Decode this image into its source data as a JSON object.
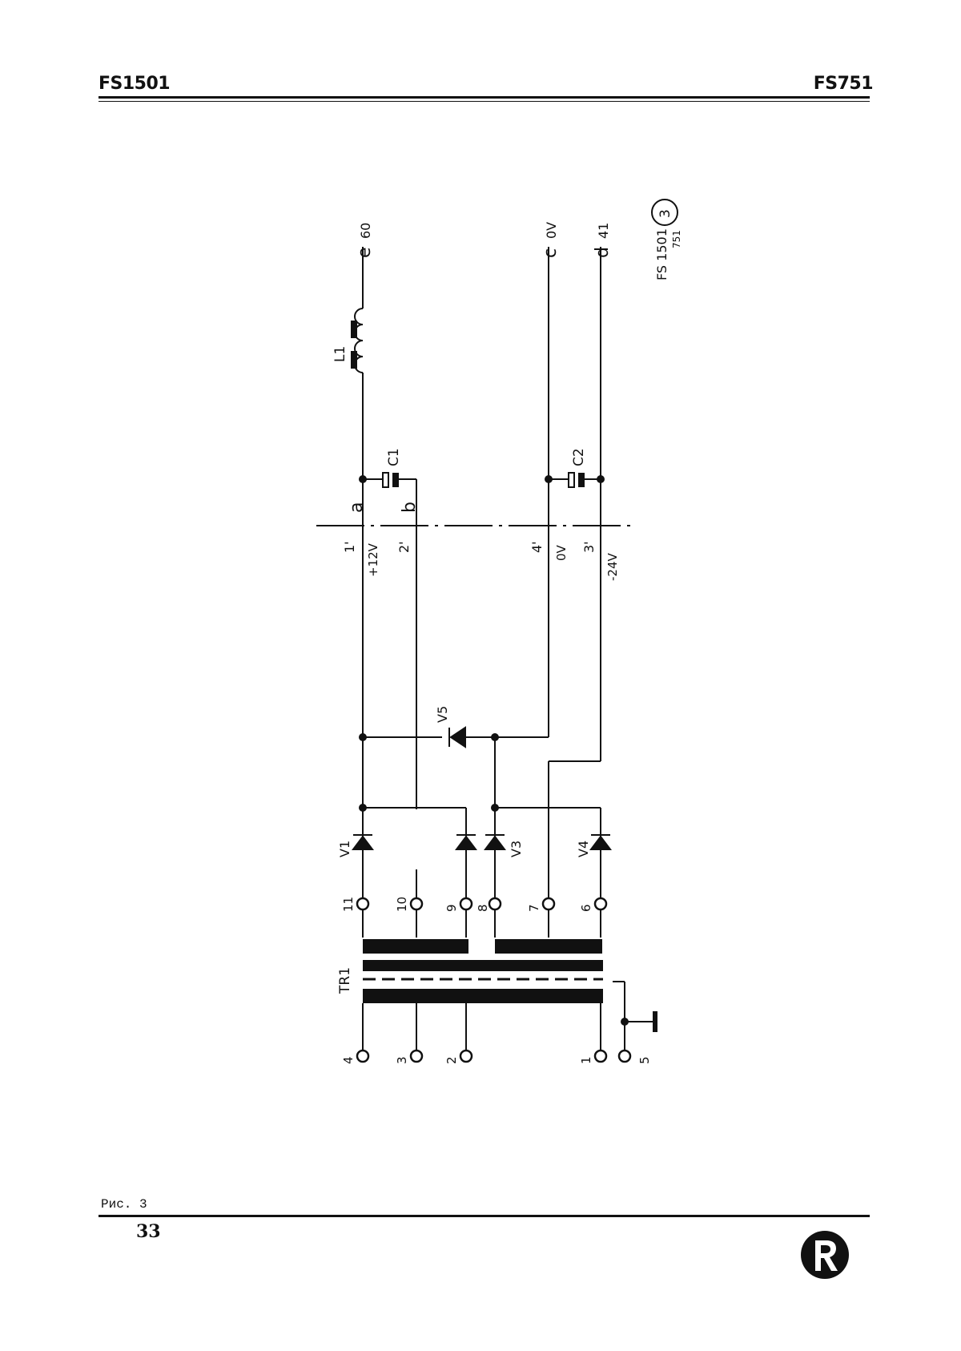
{
  "header": {
    "left": "FS1501",
    "right": "FS751"
  },
  "footer": {
    "caption": "Рис. 3",
    "page": "33"
  },
  "diagram": {
    "model": {
      "line1": "FS 1501",
      "line2": "751",
      "figure": "3"
    },
    "outputs": {
      "e": {
        "letter": "e",
        "pin": "60"
      },
      "c": {
        "letter": "c",
        "pin": "0V"
      },
      "d": {
        "letter": "d",
        "pin": "41"
      }
    },
    "nodes": {
      "a": "a",
      "b": "b"
    },
    "connector": {
      "p1": "1'",
      "v1": "+12V",
      "p2": "2'",
      "p4": "4'",
      "v4": "0V",
      "p3": "3'",
      "v3": "-24V"
    },
    "components": {
      "L1": "L1",
      "C1": "C1",
      "C2": "C2",
      "V1": "V1",
      "V3": "V3",
      "V4": "V4",
      "V5": "V5",
      "TR1": "TR1"
    },
    "transformer_pins": {
      "secondary": [
        "11",
        "10",
        "9",
        "8",
        "7",
        "6"
      ],
      "primary": [
        "4",
        "3",
        "2",
        "1",
        "5"
      ]
    }
  }
}
